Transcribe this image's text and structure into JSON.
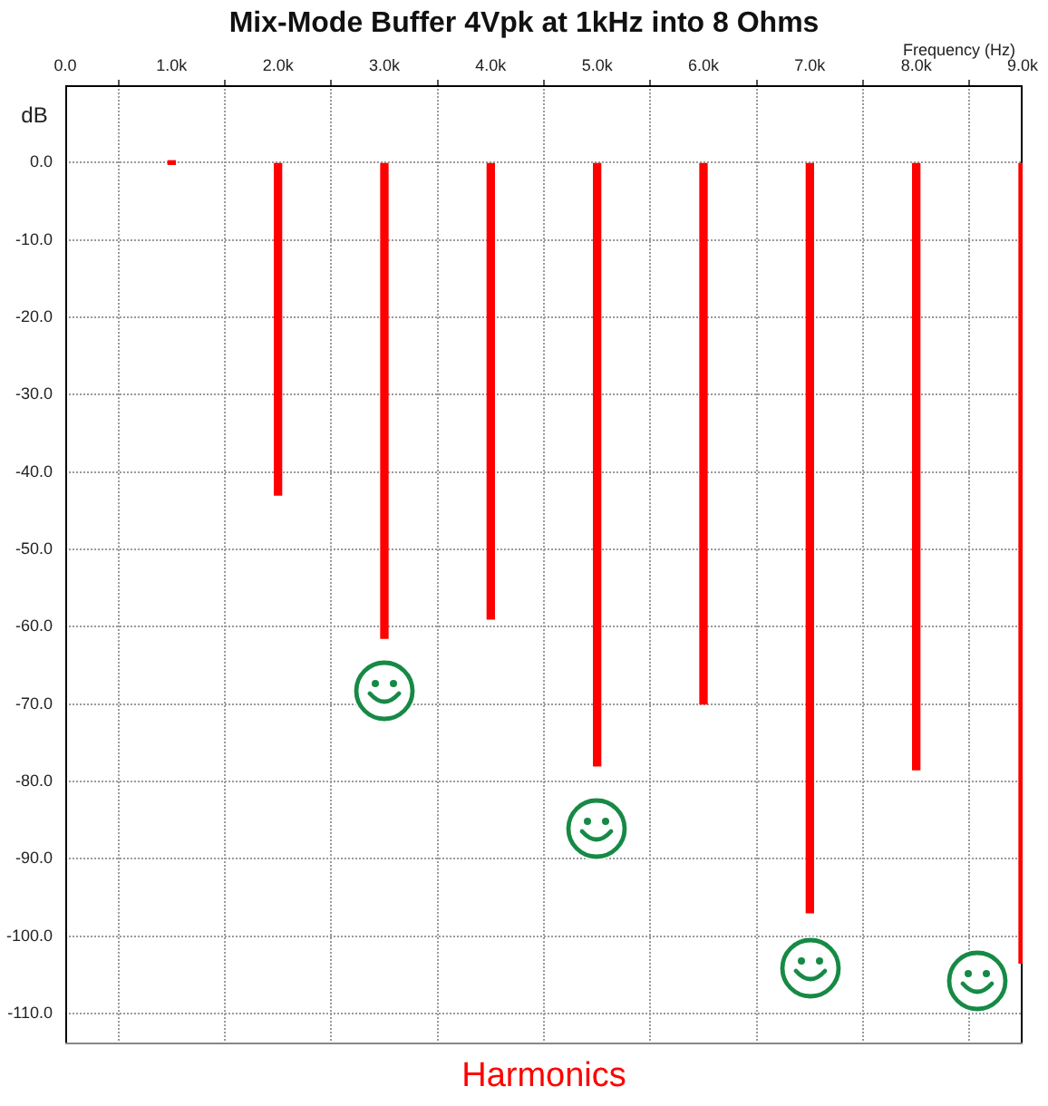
{
  "chart_data": {
    "type": "bar",
    "title": "Mix-Mode Buffer 4Vpk at 1kHz into 8 Ohms",
    "xlabel": "Frequency (Hz)",
    "ylabel": "dB",
    "annotations": [
      "Harmonics"
    ],
    "x": [
      1000,
      2000,
      3000,
      4000,
      5000,
      6000,
      7000,
      8000,
      9000
    ],
    "values": [
      0,
      -43,
      -61.5,
      -59,
      -78,
      -70,
      -97,
      -78.5,
      -103.5
    ],
    "color": "#ff0000",
    "xlim": [
      0,
      9000
    ],
    "xticks": [
      {
        "value": 0,
        "label": "0.0"
      },
      {
        "value": 1000,
        "label": "1.0k"
      },
      {
        "value": 2000,
        "label": "2.0k"
      },
      {
        "value": 3000,
        "label": "3.0k"
      },
      {
        "value": 4000,
        "label": "4.0k"
      },
      {
        "value": 5000,
        "label": "5.0k"
      },
      {
        "value": 6000,
        "label": "6.0k"
      },
      {
        "value": 7000,
        "label": "7.0k"
      },
      {
        "value": 8000,
        "label": "8.0k"
      },
      {
        "value": 9000,
        "label": "9.0k"
      }
    ],
    "ylim": [
      -114,
      10
    ],
    "yticks": [
      {
        "value": 0,
        "label": "0.0"
      },
      {
        "value": -10,
        "label": "-10.0"
      },
      {
        "value": -20,
        "label": "-20.0"
      },
      {
        "value": -30,
        "label": "-30.0"
      },
      {
        "value": -40,
        "label": "-40.0"
      },
      {
        "value": -50,
        "label": "-50.0"
      },
      {
        "value": -60,
        "label": "-60.0"
      },
      {
        "value": -70,
        "label": "-70.0"
      },
      {
        "value": -80,
        "label": "-80.0"
      },
      {
        "value": -90,
        "label": "-90.0"
      },
      {
        "value": -100,
        "label": "-100.0"
      },
      {
        "value": -110,
        "label": "-110.0"
      }
    ],
    "grid": true,
    "legend": false
  }
}
